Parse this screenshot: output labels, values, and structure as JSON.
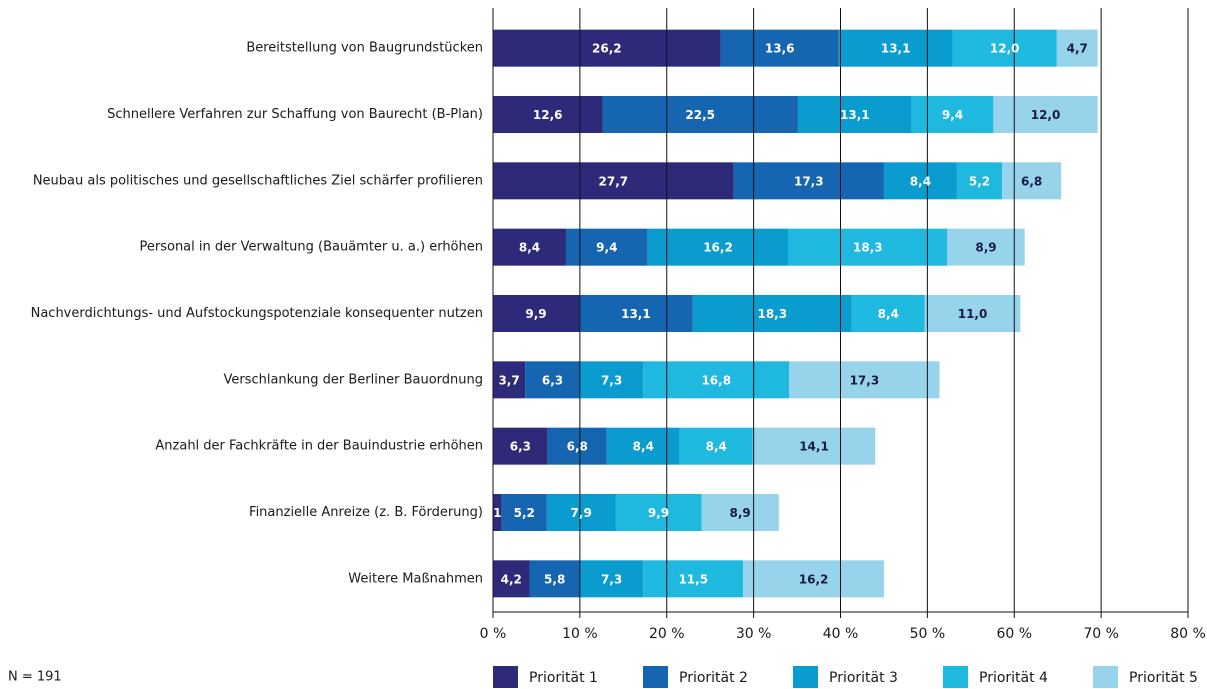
{
  "chart_data": {
    "type": "stacked-barh",
    "categories": [
      "Bereitstellung von Baugrundstücken",
      "Schnellere Verfahren zur Schaffung von Baurecht (B-Plan)",
      "Neubau als politisches und gesellschaftliches Ziel schärfer profilieren",
      "Personal in der Verwaltung (Bauämter u. a.) erhöhen",
      "Nachverdichtungs- und Aufstockungspotenziale konsequenter nutzen",
      "Verschlankung der Berliner Bauordnung",
      "Anzahl der Fachkräfte in der Bauindustrie erhöhen",
      "Finanzielle Anreize (z. B. Förderung)",
      "Weitere Maßnahmen"
    ],
    "series": [
      {
        "name": "Priorität 1",
        "color": "#2e2a7a",
        "values": [
          26.2,
          12.6,
          27.7,
          8.4,
          9.9,
          3.7,
          6.3,
          1,
          4.2
        ],
        "value_labels": [
          "26,2",
          "12,6",
          "27,7",
          "8,4",
          "9,9",
          "3,7",
          "6,3",
          "1",
          "4,2"
        ]
      },
      {
        "name": "Priorität 2",
        "color": "#1565b0",
        "values": [
          13.6,
          22.5,
          17.3,
          9.4,
          13.1,
          6.3,
          6.8,
          5.2,
          5.8
        ],
        "value_labels": [
          "13,6",
          "22,5",
          "17,3",
          "9,4",
          "13,1",
          "6,3",
          "6,8",
          "5,2",
          "5,8"
        ]
      },
      {
        "name": "Priorität 3",
        "color": "#0a9bcf",
        "values": [
          13.1,
          13.1,
          8.4,
          16.2,
          18.3,
          7.3,
          8.4,
          7.9,
          7.3
        ],
        "value_labels": [
          "13,1",
          "13,1",
          "8,4",
          "16,2",
          "18,3",
          "7,3",
          "8,4",
          "7,9",
          "7,3"
        ]
      },
      {
        "name": "Priorität 4",
        "color": "#1fb8df",
        "values": [
          12.0,
          9.4,
          5.2,
          18.3,
          8.4,
          16.8,
          8.4,
          9.9,
          11.5
        ],
        "value_labels": [
          "12,0",
          "9,4",
          "5,2",
          "18,3",
          "8,4",
          "16,8",
          "8,4",
          "9,9",
          "11,5"
        ]
      },
      {
        "name": "Priorität 5",
        "color": "#97d4ec",
        "values": [
          4.7,
          12.0,
          6.8,
          8.9,
          11.0,
          17.3,
          14.1,
          8.9,
          16.2
        ],
        "value_labels": [
          "4,7",
          "12,0",
          "6,8",
          "8,9",
          "11,0",
          "17,3",
          "14,1",
          "8,9",
          "16,2"
        ]
      }
    ],
    "xlim": [
      0,
      80
    ],
    "xticks": [
      {
        "value": 0,
        "label": "0 %"
      },
      {
        "value": 10,
        "label": "10 %"
      },
      {
        "value": 20,
        "label": "20 %"
      },
      {
        "value": 30,
        "label": "30 %"
      },
      {
        "value": 40,
        "label": "40 %"
      },
      {
        "value": 50,
        "label": "50 %"
      },
      {
        "value": 60,
        "label": "60 %"
      },
      {
        "value": 70,
        "label": "70 %"
      },
      {
        "value": 80,
        "label": "80 %"
      }
    ],
    "grid": true,
    "legend": "bottom",
    "note": "N = 191"
  }
}
